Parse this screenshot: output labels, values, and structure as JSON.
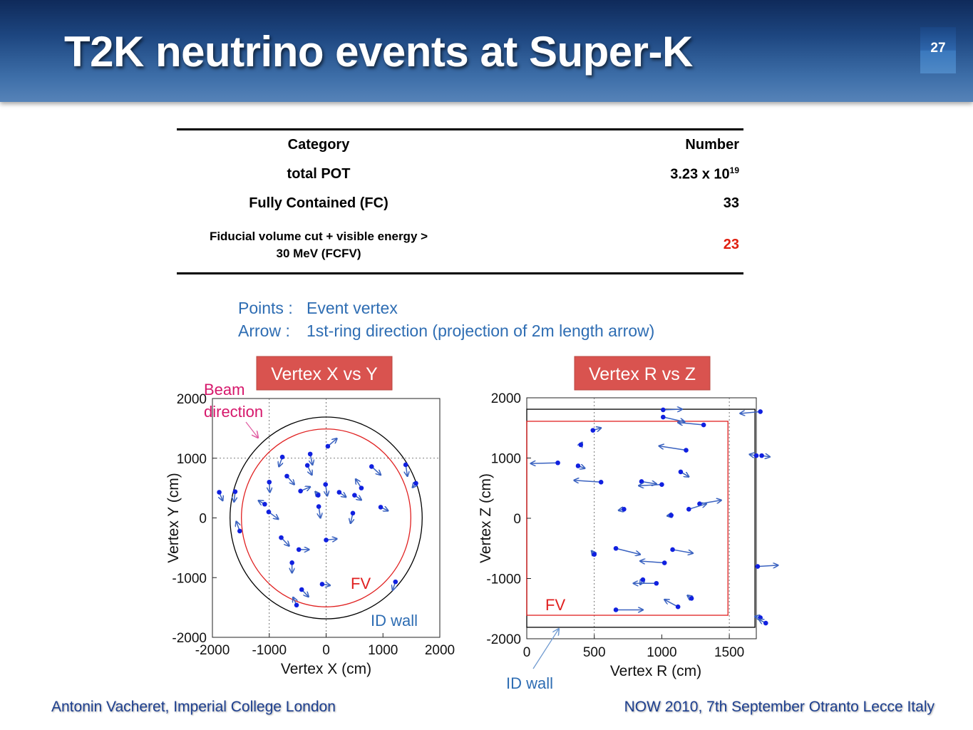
{
  "slide": {
    "title": "T2K neutrino events at Super-K",
    "slide_number": "27",
    "footer_left": "Antonin Vacheret, Imperial College London",
    "footer_right": "NOW 2010, 7th September Otranto Lecce Italy"
  },
  "table": {
    "headers": [
      "Category",
      "Number"
    ],
    "rows": [
      {
        "category": "total POT",
        "number_base": "3.23 x 10",
        "number_exp": "19"
      },
      {
        "category": "Fully Contained (FC)",
        "number": "33"
      },
      {
        "category_line1": "Fiducial volume cut + visible energy >",
        "category_line2": "30 MeV (FCFV)",
        "number": "23",
        "highlight_color": "#e02010"
      }
    ]
  },
  "legend": {
    "points_key": "Points :",
    "points_value": "Event vertex",
    "arrow_key": "Arrow :",
    "arrow_value": "1st-ring direction (projection of 2m length arrow)"
  },
  "colors": {
    "points": "#1020e0",
    "arrows": "#3a62c0",
    "fv": "#e02020",
    "tank": "#000000",
    "legend_text": "#2e6db3",
    "label_bg": "#d9534f",
    "beam_text": "#d6176b",
    "id_wall_text": "#2e6db3"
  },
  "chart_data": [
    {
      "type": "scatter",
      "title": "Vertex  X vs Y",
      "xlabel": "Vertex X (cm)",
      "ylabel": "Vertex Y (cm)",
      "xlim": [
        -2000,
        2000
      ],
      "ylim": [
        -2000,
        2000
      ],
      "xticks": [
        "-2000",
        "-1000",
        "0",
        "1000",
        "2000"
      ],
      "yticks": [
        "2000",
        "1000",
        "0",
        "-1000",
        "-2000"
      ],
      "grid": "dashed at 0 and -1000",
      "annotations": {
        "beam": [
          "Beam",
          "direction"
        ],
        "fv": "FV",
        "id_wall": "ID wall"
      },
      "id_wall_radius": 1690,
      "fv_radius": 1490,
      "points": [
        {
          "x": 30,
          "y": 1200,
          "dx": 160,
          "dy": 130
        },
        {
          "x": -280,
          "y": 1070,
          "dx": 40,
          "dy": -180
        },
        {
          "x": -770,
          "y": 1020,
          "dx": -60,
          "dy": -160
        },
        {
          "x": -330,
          "y": 880,
          "dx": 80,
          "dy": -160
        },
        {
          "x": -690,
          "y": 700,
          "dx": 130,
          "dy": -140
        },
        {
          "x": -450,
          "y": 450,
          "dx": 170,
          "dy": 70
        },
        {
          "x": -1000,
          "y": 600,
          "dx": 10,
          "dy": -170
        },
        {
          "x": -1600,
          "y": 440,
          "dx": -20,
          "dy": -170
        },
        {
          "x": -1080,
          "y": 230,
          "dx": -110,
          "dy": 60
        },
        {
          "x": -1010,
          "y": 100,
          "dx": 170,
          "dy": -120
        },
        {
          "x": -1520,
          "y": -220,
          "dx": -60,
          "dy": 160
        },
        {
          "x": -790,
          "y": -330,
          "dx": 140,
          "dy": -140
        },
        {
          "x": -480,
          "y": -530,
          "dx": 180,
          "dy": 0
        },
        {
          "x": -600,
          "y": -750,
          "dx": 0,
          "dy": -170
        },
        {
          "x": -430,
          "y": -1200,
          "dx": 120,
          "dy": -120
        },
        {
          "x": -520,
          "y": -1460,
          "dx": -60,
          "dy": 130
        },
        {
          "x": -70,
          "y": -1110,
          "dx": 140,
          "dy": -20
        },
        {
          "x": 0,
          "y": -370,
          "dx": 190,
          "dy": 20
        },
        {
          "x": -140,
          "y": 380,
          "dx": -50,
          "dy": 60
        },
        {
          "x": -130,
          "y": 190,
          "dx": 30,
          "dy": -190
        },
        {
          "x": -10,
          "y": 560,
          "dx": 30,
          "dy": -190
        },
        {
          "x": 230,
          "y": 430,
          "dx": 120,
          "dy": -80
        },
        {
          "x": 500,
          "y": 380,
          "dx": 120,
          "dy": -80
        },
        {
          "x": 620,
          "y": 500,
          "dx": -100,
          "dy": 150
        },
        {
          "x": 470,
          "y": 80,
          "dx": -40,
          "dy": -170
        },
        {
          "x": 800,
          "y": 860,
          "dx": 160,
          "dy": -140
        },
        {
          "x": 960,
          "y": 180,
          "dx": 130,
          "dy": -60
        },
        {
          "x": 1400,
          "y": 890,
          "dx": 30,
          "dy": -190
        },
        {
          "x": 1580,
          "y": 580,
          "dx": -60,
          "dy": -70
        },
        {
          "x": 1220,
          "y": -1070,
          "dx": -50,
          "dy": -140
        },
        {
          "x": -1880,
          "y": 430,
          "dx": 60,
          "dy": -140
        }
      ]
    },
    {
      "type": "scatter",
      "title": "Vertex  R vs Z",
      "xlabel": "Vertex R (cm)",
      "ylabel": "Vertex Z (cm)",
      "xlim": [
        0,
        1700
      ],
      "ylim": [
        -2000,
        2000
      ],
      "xticks": [
        "0",
        "500",
        "1000",
        "1500"
      ],
      "yticks": [
        "2000",
        "1000",
        "0",
        "-1000",
        "-2000"
      ],
      "annotations": {
        "fv": "FV",
        "id_wall": "ID wall"
      },
      "id_wall": {
        "r": 1690,
        "z_half": 1810
      },
      "fv": {
        "r": 1490,
        "z_half": 1610
      },
      "points": [
        {
          "x": 1010,
          "y": 1800,
          "dx": 140,
          "dy": 10
        },
        {
          "x": 1010,
          "y": 1680,
          "dx": 160,
          "dy": -80
        },
        {
          "x": 1310,
          "y": 1550,
          "dx": -190,
          "dy": 40
        },
        {
          "x": 1730,
          "y": 1770,
          "dx": -150,
          "dy": -30
        },
        {
          "x": 490,
          "y": 1460,
          "dx": 60,
          "dy": 40
        },
        {
          "x": 400,
          "y": 1220,
          "dx": 10,
          "dy": 40
        },
        {
          "x": 1180,
          "y": 1130,
          "dx": -200,
          "dy": 70
        },
        {
          "x": 1700,
          "y": 1040,
          "dx": -50,
          "dy": 20
        },
        {
          "x": 1740,
          "y": 1040,
          "dx": 60,
          "dy": -20
        },
        {
          "x": 230,
          "y": 920,
          "dx": -200,
          "dy": -10
        },
        {
          "x": 380,
          "y": 870,
          "dx": 50,
          "dy": -40
        },
        {
          "x": 1140,
          "y": 770,
          "dx": 60,
          "dy": -80
        },
        {
          "x": 550,
          "y": 600,
          "dx": -200,
          "dy": 30
        },
        {
          "x": 850,
          "y": 610,
          "dx": 110,
          "dy": -40
        },
        {
          "x": 1000,
          "y": 560,
          "dx": -170,
          "dy": -20
        },
        {
          "x": 1280,
          "y": 240,
          "dx": 160,
          "dy": 60
        },
        {
          "x": 1200,
          "y": 150,
          "dx": 130,
          "dy": 90
        },
        {
          "x": 720,
          "y": 150,
          "dx": -40,
          "dy": -20
        },
        {
          "x": 1070,
          "y": 50,
          "dx": -30,
          "dy": -10
        },
        {
          "x": 500,
          "y": -600,
          "dx": -20,
          "dy": 60
        },
        {
          "x": 660,
          "y": -500,
          "dx": 180,
          "dy": -100
        },
        {
          "x": 1080,
          "y": -520,
          "dx": 150,
          "dy": -60
        },
        {
          "x": 1020,
          "y": -740,
          "dx": -180,
          "dy": 30
        },
        {
          "x": 1710,
          "y": -800,
          "dx": 150,
          "dy": 20
        },
        {
          "x": 860,
          "y": -1020,
          "dx": -20,
          "dy": -80
        },
        {
          "x": 960,
          "y": -1080,
          "dx": -170,
          "dy": 0
        },
        {
          "x": 1220,
          "y": -1330,
          "dx": -30,
          "dy": 50
        },
        {
          "x": 1120,
          "y": -1470,
          "dx": -100,
          "dy": 120
        },
        {
          "x": 660,
          "y": -1520,
          "dx": 200,
          "dy": 0
        },
        {
          "x": 1730,
          "y": -1650,
          "dx": -40,
          "dy": 20
        },
        {
          "x": 1770,
          "y": -1740,
          "dx": -50,
          "dy": 60
        }
      ]
    }
  ]
}
